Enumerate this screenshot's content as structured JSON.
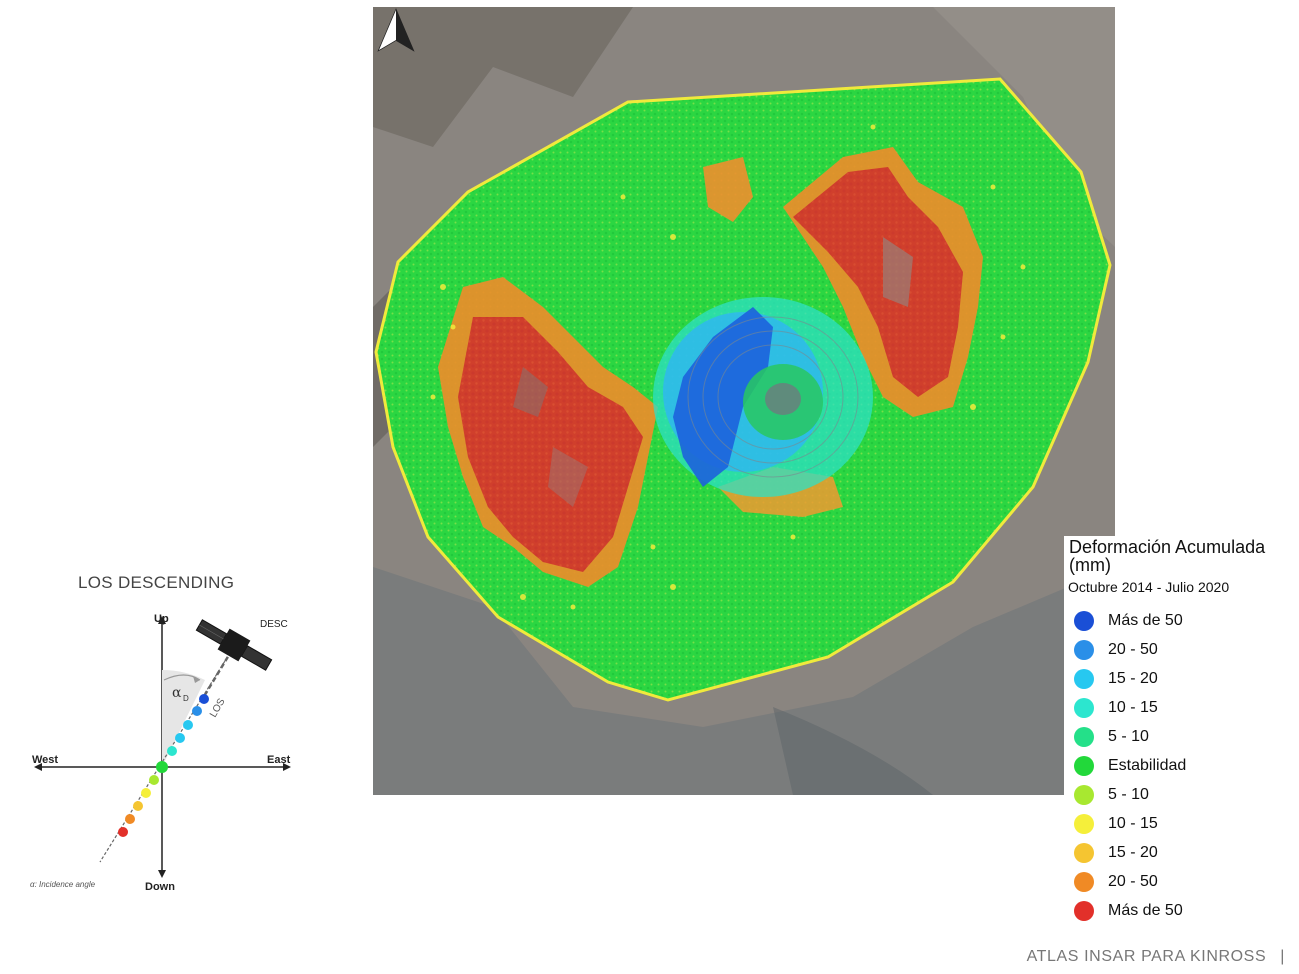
{
  "map": {
    "colors": {
      "mas50_up": "#1a4fd6",
      "up20_50": "#2a8fe8",
      "up15_20": "#27c8f0",
      "up10_15": "#2ce6cf",
      "up5_10": "#24e089",
      "stability": "#22d83a",
      "down5_10": "#a8e830",
      "down10_15": "#f5ef3a",
      "down15_20": "#f5c531",
      "down20_50": "#f08a25",
      "mas50_down": "#e2302a",
      "outline": "#f0ea3c"
    }
  },
  "legend": {
    "title": "Deformación Acumulada (mm)",
    "subtitle": "Octubre 2014 - Julio 2020",
    "items": [
      {
        "label": "Más de 50",
        "color": "#1a4fd6"
      },
      {
        "label": "20 - 50",
        "color": "#2a8fe8"
      },
      {
        "label": "15 - 20",
        "color": "#27c8f0"
      },
      {
        "label": "10 - 15",
        "color": "#2ce6cf"
      },
      {
        "label": "5 - 10",
        "color": "#24e089"
      },
      {
        "label": "Estabilidad",
        "color": "#22d83a"
      },
      {
        "label": "5 - 10",
        "color": "#a8e830"
      },
      {
        "label": "10 - 15",
        "color": "#f5ef3a"
      },
      {
        "label": "15 - 20",
        "color": "#f5c531"
      },
      {
        "label": "20 - 50",
        "color": "#f08a25"
      },
      {
        "label": "Más de 50",
        "color": "#e2302a"
      }
    ]
  },
  "diagram": {
    "title": "LOS DESCENDING",
    "up": "Up",
    "down": "Down",
    "west": "West",
    "east": "East",
    "desc": "DESC",
    "los": "LOS",
    "alpha": "α",
    "alpha_sub": "D",
    "note": "α: Incidence angle"
  },
  "footer": {
    "text": "ATLAS INSAR PARA KINROSS",
    "separator": "|"
  }
}
